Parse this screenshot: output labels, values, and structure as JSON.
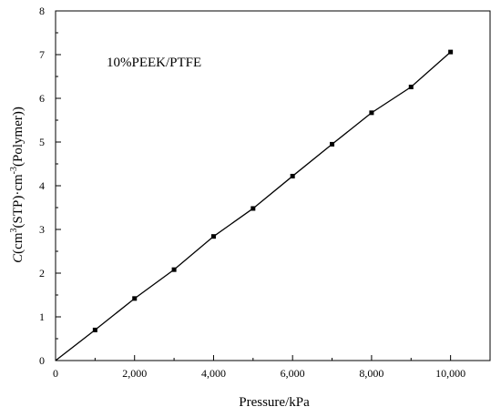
{
  "chart_data": {
    "type": "line",
    "title": "",
    "annotation": "10%PEEK/PTFE",
    "xlabel": "Pressure/kPa",
    "ylabel": {
      "parts": [
        {
          "text": "C",
          "italic": true,
          "sup": false
        },
        {
          "text": "(cm",
          "italic": false,
          "sup": false
        },
        {
          "text": "3",
          "italic": false,
          "sup": true
        },
        {
          "text": "(STP)·cm",
          "italic": false,
          "sup": false
        },
        {
          "text": "-3",
          "italic": false,
          "sup": true
        },
        {
          "text": "(Polymer))",
          "italic": false,
          "sup": false
        }
      ]
    },
    "xlim": [
      0,
      11000
    ],
    "ylim": [
      0,
      8
    ],
    "xticks": [
      0,
      2000,
      4000,
      6000,
      8000,
      10000
    ],
    "xtick_labels": [
      "0",
      "2,000",
      "4,000",
      "6,000",
      "8,000",
      "10,000"
    ],
    "yticks": [
      0,
      1,
      2,
      3,
      4,
      5,
      6,
      7,
      8
    ],
    "ytick_labels": [
      "0",
      "1",
      "2",
      "3",
      "4",
      "5",
      "6",
      "7",
      "8"
    ],
    "grid": false,
    "series": [
      {
        "line_from_origin": true,
        "x": [
          1000,
          2000,
          3000,
          4000,
          5000,
          6000,
          7000,
          8000,
          9000,
          10000
        ],
        "y": [
          0.7,
          1.42,
          2.08,
          2.84,
          3.48,
          4.22,
          4.95,
          5.67,
          6.26,
          7.06
        ],
        "color": "#000000",
        "marker": "square"
      }
    ]
  }
}
